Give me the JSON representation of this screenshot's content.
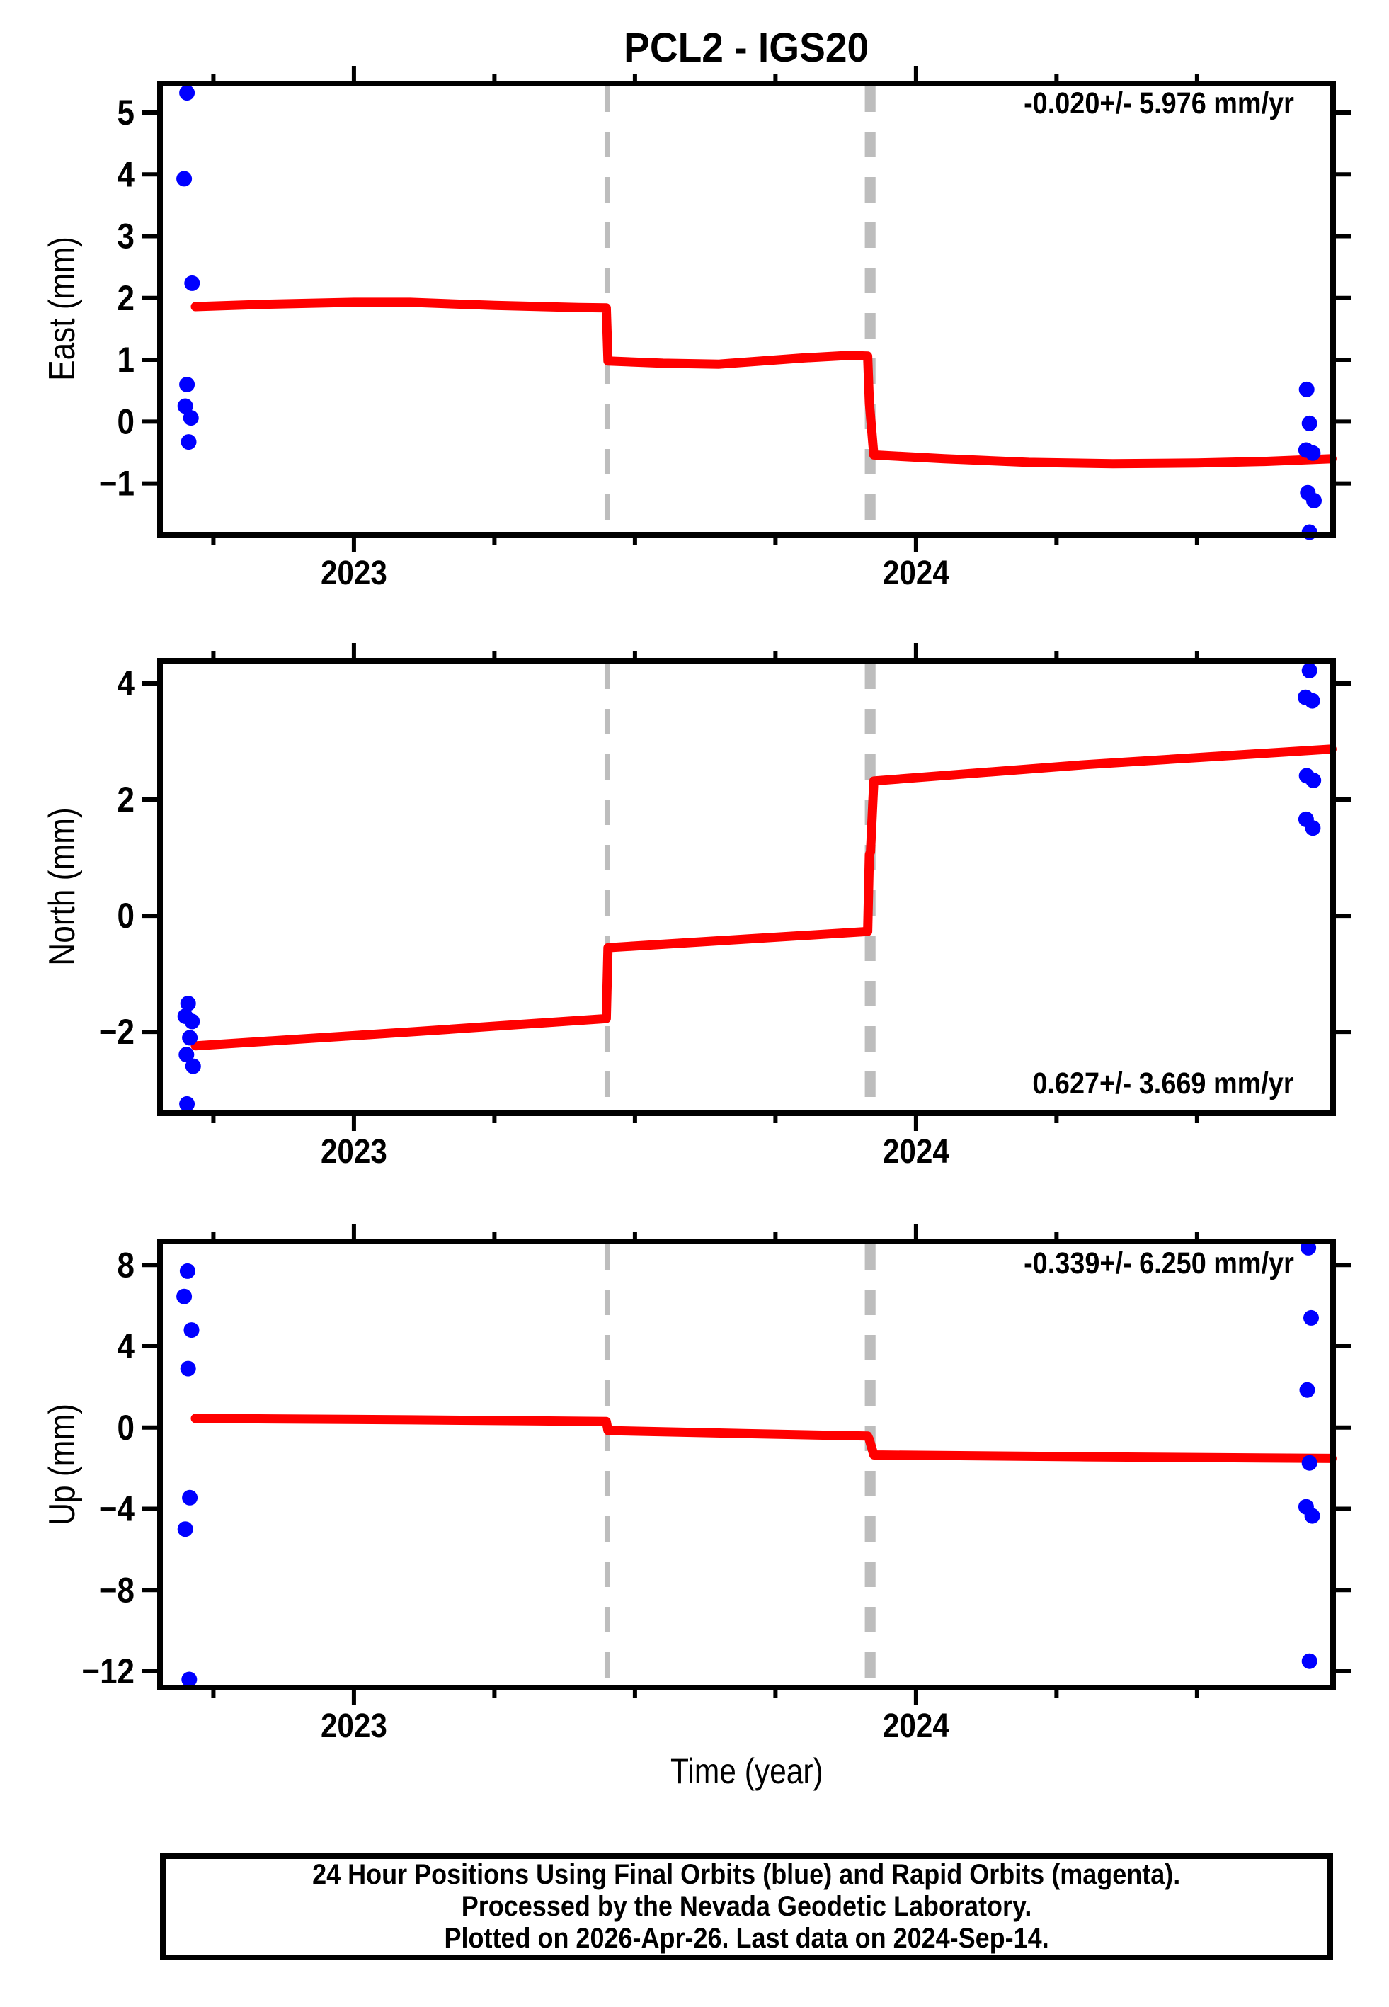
{
  "title": "PCL2 - IGS20",
  "xlabel": "Time (year)",
  "footer": {
    "line1": "24 Hour Positions Using Final Orbits (blue) and Rapid Orbits (magenta).",
    "line2": "Processed by the Nevada Geodetic Laboratory.",
    "line3": "Plotted on 2026-Apr-26. Last data on 2024-Sep-14."
  },
  "colors": {
    "final_orbit_points": "#0000ff",
    "rapid_orbit_points": "#ff00ff",
    "trend_line": "#ff0000",
    "event_line": "#bdbdbd",
    "frame": "#000000"
  },
  "chart_data": [
    {
      "type": "scatter",
      "id": "east",
      "ylabel": "East (mm)",
      "annotation": "-0.020+/- 5.976 mm/yr",
      "annotation_pos": "top-right",
      "xlim": [
        2022.655,
        2024.742
      ],
      "ylim": [
        -1.83,
        5.47
      ],
      "y_ticks": [
        -1,
        0,
        1,
        2,
        3,
        4,
        5
      ],
      "y_tick_labels": [
        "−1",
        "0",
        "1",
        "2",
        "3",
        "4",
        "5"
      ],
      "x_major_ticks": [
        2023,
        2024
      ],
      "x_major_labels": [
        "2023",
        "2024"
      ],
      "x_minor_ticks": [
        2022.75,
        2023.25,
        2023.5,
        2023.75,
        2024.25,
        2024.5
      ],
      "event_lines_x": [
        2023.451,
        2023.914,
        2023.923
      ],
      "trend_line": [
        [
          2022.718,
          1.86
        ],
        [
          2022.85,
          1.9
        ],
        [
          2023.0,
          1.93
        ],
        [
          2023.1,
          1.93
        ],
        [
          2023.25,
          1.88
        ],
        [
          2023.4,
          1.845
        ],
        [
          2023.449,
          1.84
        ],
        [
          2023.452,
          0.98
        ],
        [
          2023.55,
          0.945
        ],
        [
          2023.65,
          0.93
        ],
        [
          2023.8,
          1.03
        ],
        [
          2023.88,
          1.07
        ],
        [
          2023.914,
          1.06
        ],
        [
          2023.917,
          0.3
        ],
        [
          2023.925,
          -0.54
        ],
        [
          2024.05,
          -0.6
        ],
        [
          2024.2,
          -0.66
        ],
        [
          2024.35,
          -0.68
        ],
        [
          2024.5,
          -0.67
        ],
        [
          2024.62,
          -0.645
        ],
        [
          2024.74,
          -0.6
        ]
      ],
      "points_final": [
        [
          2022.703,
          5.32
        ],
        [
          2022.698,
          3.93
        ],
        [
          2022.712,
          2.24
        ],
        [
          2022.703,
          0.6
        ],
        [
          2022.7,
          0.25
        ],
        [
          2022.71,
          0.06
        ],
        [
          2022.706,
          -0.33
        ],
        [
          2024.695,
          0.52
        ],
        [
          2024.7,
          -0.03
        ],
        [
          2024.694,
          -0.46
        ],
        [
          2024.706,
          -0.51
        ],
        [
          2024.697,
          -1.15
        ],
        [
          2024.708,
          -1.28
        ],
        [
          2024.7,
          -1.79
        ]
      ],
      "points_rapid": []
    },
    {
      "type": "scatter",
      "id": "north",
      "ylabel": "North (mm)",
      "annotation": "0.627+/- 3.669 mm/yr",
      "annotation_pos": "bottom-right",
      "xlim": [
        2022.655,
        2024.742
      ],
      "ylim": [
        -3.4,
        4.39
      ],
      "y_ticks": [
        -2,
        0,
        2,
        4
      ],
      "y_tick_labels": [
        "−2",
        "0",
        "2",
        "4"
      ],
      "x_major_ticks": [
        2023,
        2024
      ],
      "x_major_labels": [
        "2023",
        "2024"
      ],
      "x_minor_ticks": [
        2022.75,
        2023.25,
        2023.5,
        2023.75,
        2024.25,
        2024.5
      ],
      "event_lines_x": [
        2023.451,
        2023.914,
        2023.923
      ],
      "trend_line": [
        [
          2022.718,
          -2.24
        ],
        [
          2023.1,
          -2.0
        ],
        [
          2023.449,
          -1.77
        ],
        [
          2023.452,
          -0.55
        ],
        [
          2023.7,
          -0.4
        ],
        [
          2023.914,
          -0.27
        ],
        [
          2023.917,
          1.05
        ],
        [
          2023.919,
          1.1
        ],
        [
          2023.925,
          2.32
        ],
        [
          2024.3,
          2.6
        ],
        [
          2024.74,
          2.87
        ]
      ],
      "points_final": [
        [
          2022.705,
          -1.51
        ],
        [
          2022.7,
          -1.73
        ],
        [
          2022.712,
          -1.82
        ],
        [
          2022.708,
          -2.1
        ],
        [
          2022.702,
          -2.39
        ],
        [
          2022.714,
          -2.59
        ],
        [
          2022.703,
          -3.24
        ],
        [
          2024.7,
          4.22
        ],
        [
          2024.693,
          3.76
        ],
        [
          2024.705,
          3.7
        ],
        [
          2024.695,
          2.41
        ],
        [
          2024.707,
          2.33
        ],
        [
          2024.694,
          1.66
        ],
        [
          2024.706,
          1.51
        ]
      ],
      "points_rapid": []
    },
    {
      "type": "scatter",
      "id": "up",
      "ylabel": "Up (mm)",
      "annotation": "-0.339+/- 6.250 mm/yr",
      "annotation_pos": "top-right",
      "xlim": [
        2022.655,
        2024.742
      ],
      "ylim": [
        -12.8,
        9.16
      ],
      "y_ticks": [
        -12,
        -8,
        -4,
        0,
        4,
        8
      ],
      "y_tick_labels": [
        "−12",
        "−8",
        "−4",
        "0",
        "4",
        "8"
      ],
      "x_major_ticks": [
        2023,
        2024
      ],
      "x_major_labels": [
        "2023",
        "2024"
      ],
      "x_minor_ticks": [
        2022.75,
        2023.25,
        2023.5,
        2023.75,
        2024.25,
        2024.5
      ],
      "event_lines_x": [
        2023.451,
        2023.914,
        2023.923
      ],
      "trend_line": [
        [
          2022.718,
          0.45
        ],
        [
          2023.1,
          0.38
        ],
        [
          2023.449,
          0.3
        ],
        [
          2023.452,
          -0.15
        ],
        [
          2023.7,
          -0.3
        ],
        [
          2023.914,
          -0.42
        ],
        [
          2023.917,
          -0.6
        ],
        [
          2023.925,
          -1.35
        ],
        [
          2024.3,
          -1.44
        ],
        [
          2024.74,
          -1.52
        ]
      ],
      "points_final": [
        [
          2022.704,
          7.7
        ],
        [
          2022.698,
          6.45
        ],
        [
          2022.711,
          4.8
        ],
        [
          2022.705,
          2.9
        ],
        [
          2022.708,
          -3.45
        ],
        [
          2022.7,
          -5.0
        ],
        [
          2022.707,
          -12.4
        ],
        [
          2024.698,
          8.85
        ],
        [
          2024.703,
          5.4
        ],
        [
          2024.696,
          1.85
        ],
        [
          2024.7,
          -1.74
        ],
        [
          2024.694,
          -3.9
        ],
        [
          2024.705,
          -4.35
        ],
        [
          2024.7,
          -11.5
        ]
      ],
      "points_rapid": []
    }
  ]
}
